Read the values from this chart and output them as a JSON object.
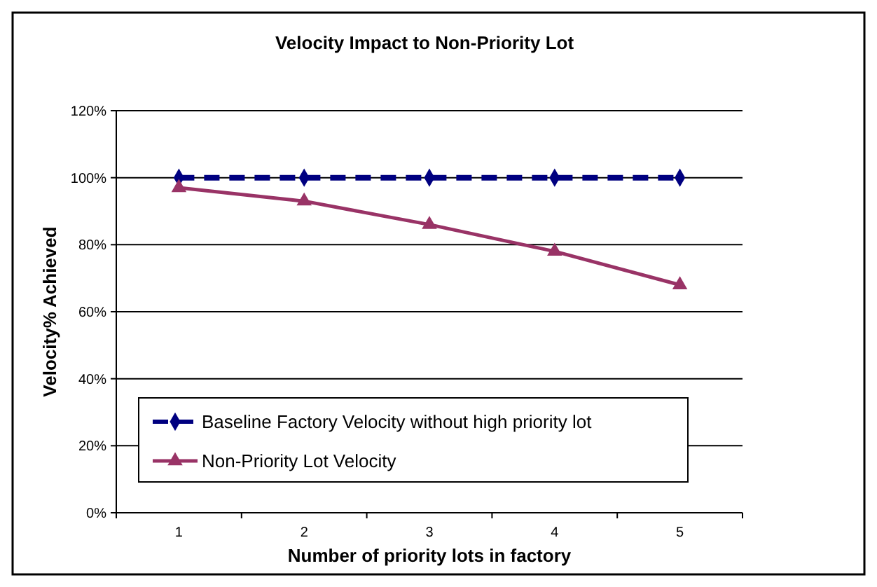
{
  "chart_data": {
    "type": "line",
    "title": "Velocity Impact to Non-Priority Lot",
    "xlabel": "Number of priority lots in factory",
    "ylabel": "Velocity% Achieved",
    "categories": [
      "1",
      "2",
      "3",
      "4",
      "5"
    ],
    "series": [
      {
        "name": "Baseline Factory Velocity without high priority lot",
        "color": "#000080",
        "values": [
          100,
          100,
          100,
          100,
          100
        ],
        "marker": "diamond",
        "line_style": "dashed"
      },
      {
        "name": "Non-Priority Lot Velocity",
        "color": "#993366",
        "values": [
          97,
          93,
          86,
          78,
          68
        ],
        "marker": "triangle",
        "line_style": "solid"
      }
    ],
    "ylim": [
      0,
      120
    ],
    "yticks": [
      {
        "value": 0,
        "label": "0%"
      },
      {
        "value": 20,
        "label": "20%"
      },
      {
        "value": 40,
        "label": "40%"
      },
      {
        "value": 60,
        "label": "60%"
      },
      {
        "value": 80,
        "label": "80%"
      },
      {
        "value": 100,
        "label": "100%"
      },
      {
        "value": 120,
        "label": "120%"
      }
    ],
    "grid": "y",
    "legend": "bottom left"
  }
}
